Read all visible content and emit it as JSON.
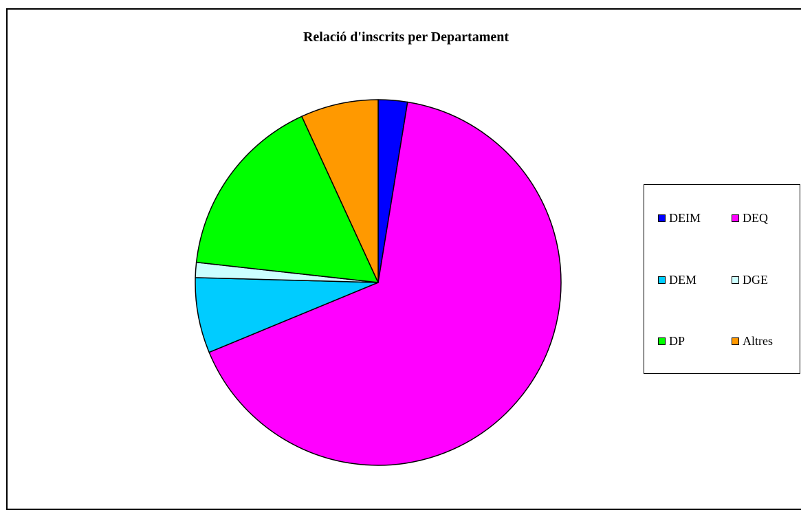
{
  "chart_data": {
    "type": "pie",
    "title": "Relació d'inscrits per Departament",
    "labels": [
      "DEIM",
      "DEQ",
      "DEM",
      "DGE",
      "DP",
      "Altres"
    ],
    "values": [
      2.7,
      69.5,
      7.0,
      1.4,
      17.2,
      7.2
    ],
    "colors": [
      "#0000ff",
      "#ff00ff",
      "#00ccff",
      "#ccffff",
      "#00ff00",
      "#ff9900"
    ],
    "legend_position": "right"
  }
}
